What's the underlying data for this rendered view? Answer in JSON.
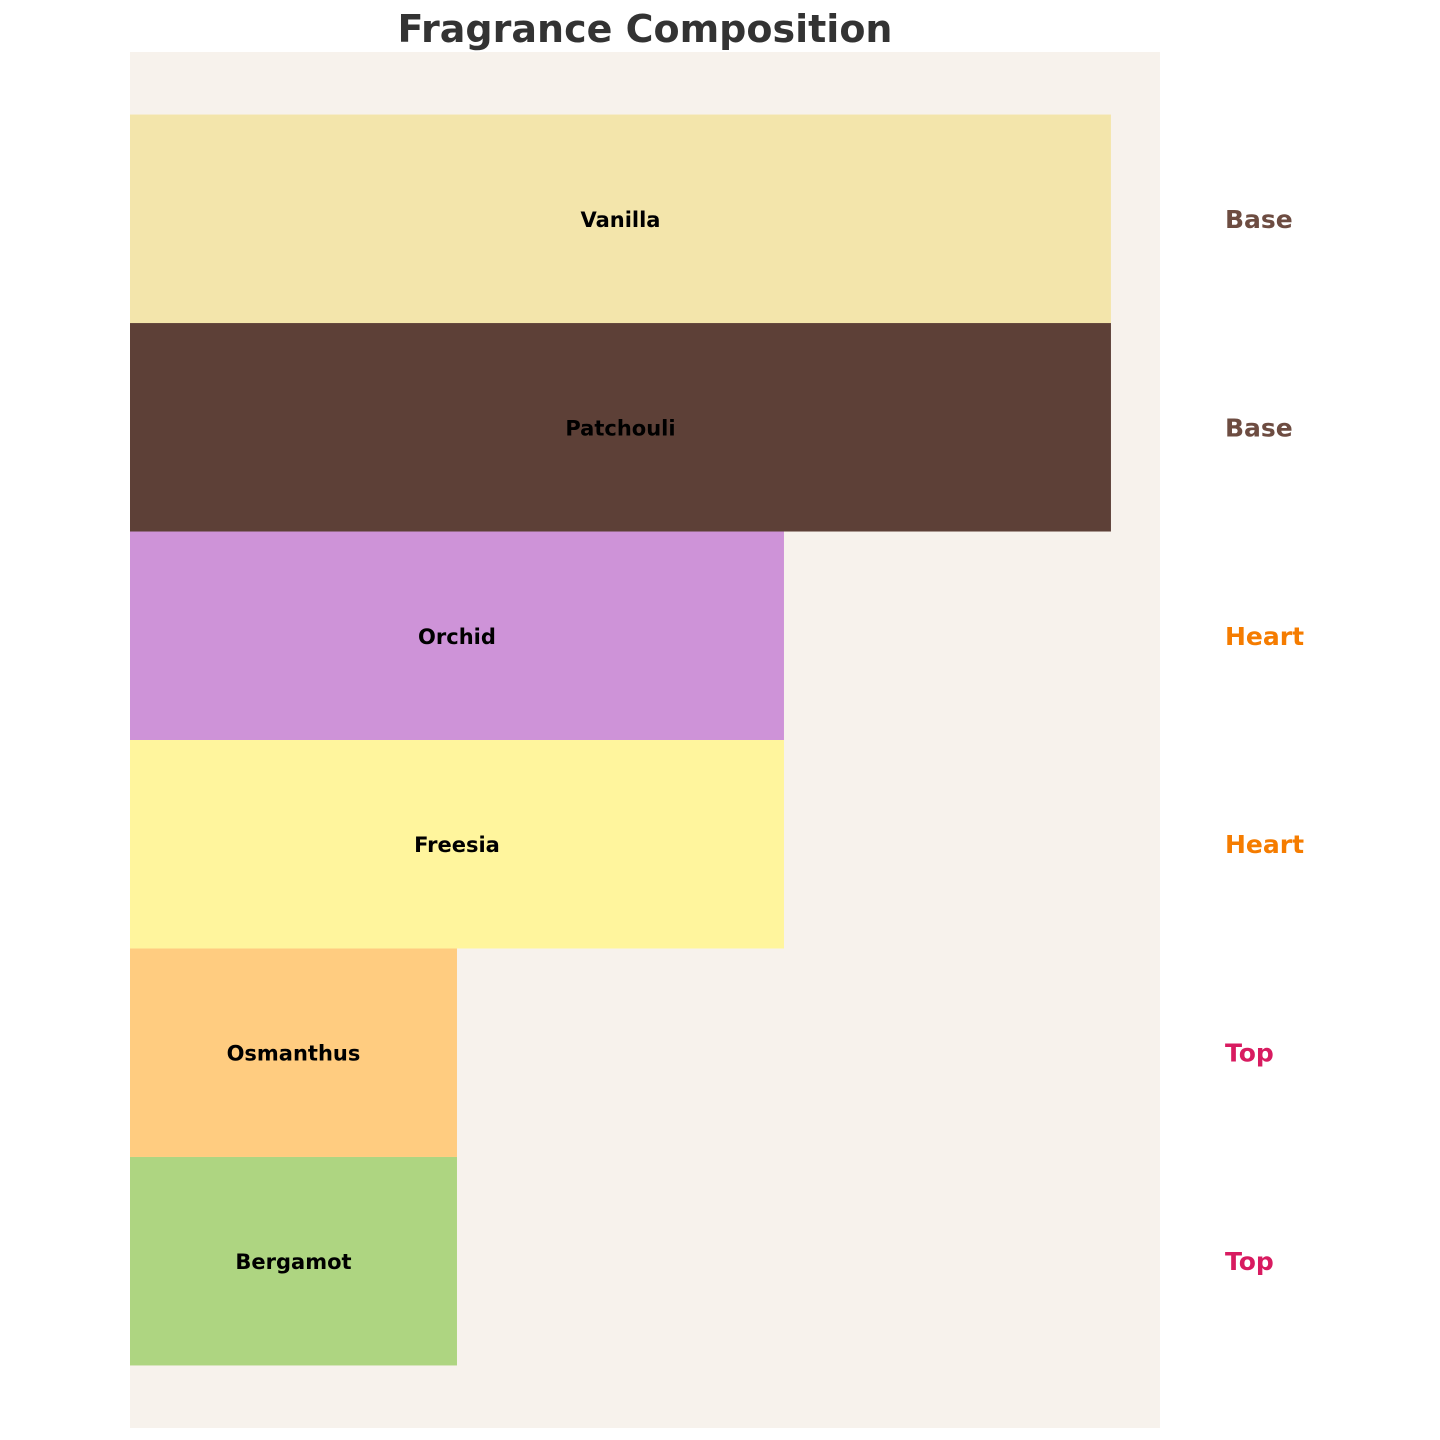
{
  "chart_data": {
    "type": "bar",
    "orientation": "horizontal",
    "title": "Fragrance Composition",
    "xlabel": "",
    "ylabel": "",
    "xlim": [
      0,
      3.15
    ],
    "ylim": [
      -0.8,
      5.8
    ],
    "grid": false,
    "axes_visible": false,
    "background_color": "#F7F2EC",
    "categories": [
      "Bergamot",
      "Osmanthus",
      "Freesia",
      "Orchid",
      "Patchouli",
      "Vanilla"
    ],
    "values": [
      1,
      1,
      2,
      2,
      3,
      3
    ],
    "stages": [
      "Top",
      "Top",
      "Heart",
      "Heart",
      "Base",
      "Base"
    ],
    "bar_colors": [
      "#AED581",
      "#FFCC80",
      "#FFF59D",
      "#CE93D8",
      "#5D4037",
      "#F3E5AB"
    ],
    "stage_colors": {
      "Top": "#D81B60",
      "Heart": "#F57C00",
      "Base": "#6D4C41"
    }
  }
}
